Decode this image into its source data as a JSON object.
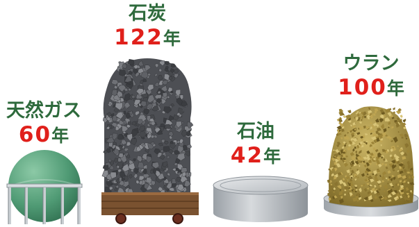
{
  "colors": {
    "name": "#2e6a3c",
    "number": "#e0201b",
    "unit": "#2e6a3c",
    "gas_tank": "#4f9a74",
    "coal": "#55575c",
    "oil_tank": "#b4b9be",
    "uranium": "#a98f3c"
  },
  "resources": [
    {
      "icon": "gas-tank-icon",
      "name": "天然ガス",
      "years": "60",
      "unit": "年"
    },
    {
      "icon": "coal-cart-icon",
      "name": "石炭",
      "years": "122",
      "unit": "年"
    },
    {
      "icon": "oil-tank-icon",
      "name": "石油",
      "years": "42",
      "unit": "年"
    },
    {
      "icon": "uranium-pile-icon",
      "name": "ウラン",
      "years": "100",
      "unit": "年"
    }
  ]
}
